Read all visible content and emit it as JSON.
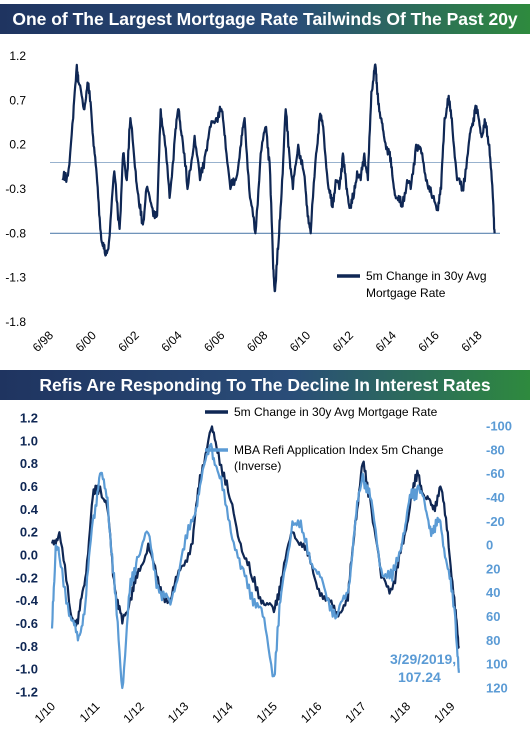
{
  "colors": {
    "navy": "#0f2754",
    "light_blue": "#5b9bd5",
    "reference_line": "#5b84b1"
  },
  "chart_data": [
    {
      "type": "line",
      "title": "One of The Largest Mortgage Rate Tailwinds Of The Past 20y",
      "x_tick_labels": [
        "6/98",
        "6/00",
        "6/02",
        "6/04",
        "6/06",
        "6/08",
        "6/10",
        "6/12",
        "6/14",
        "6/16",
        "6/18"
      ],
      "y_tick_labels": [
        "1.2",
        "0.7",
        "0.2",
        "-0.3",
        "-0.8",
        "-1.3",
        "-1.8"
      ],
      "ylim": [
        -1.8,
        1.2
      ],
      "xlim": [
        "1998-06",
        "2019-06"
      ],
      "grid": false,
      "legend_position": "bottom-right",
      "reference_lines": [
        {
          "axis": "y",
          "value": 0.0
        },
        {
          "axis": "y",
          "value": -0.8
        }
      ],
      "series": [
        {
          "name": "5m Change in 30y Avg Mortgage Rate",
          "x": [
            "1999-01",
            "1999-04",
            "1999-07",
            "1999-09",
            "1999-10",
            "2000-01",
            "2000-03",
            "2000-05",
            "2000-07",
            "2000-09",
            "2000-11",
            "2001-01",
            "2001-03",
            "2001-06",
            "2001-09",
            "2001-11",
            "2002-01",
            "2002-03",
            "2002-06",
            "2002-08",
            "2002-10",
            "2002-12",
            "2003-03",
            "2003-06",
            "2003-08",
            "2003-10",
            "2004-01",
            "2004-04",
            "2004-06",
            "2004-08",
            "2004-11",
            "2005-03",
            "2005-06",
            "2005-09",
            "2005-12",
            "2006-03",
            "2006-06",
            "2006-08",
            "2006-11",
            "2007-02",
            "2007-05",
            "2007-07",
            "2007-10",
            "2008-01",
            "2008-04",
            "2008-07",
            "2008-09",
            "2008-11",
            "2008-12",
            "2009-02",
            "2009-04",
            "2009-06",
            "2009-08",
            "2009-10",
            "2010-01",
            "2010-04",
            "2010-06",
            "2010-08",
            "2010-11",
            "2011-01",
            "2011-03",
            "2011-06",
            "2011-08",
            "2011-10",
            "2011-12",
            "2012-02",
            "2012-04",
            "2012-06",
            "2012-08",
            "2012-10",
            "2012-12",
            "2013-02",
            "2013-04",
            "2013-06",
            "2013-08",
            "2013-09",
            "2013-11",
            "2014-01",
            "2014-04",
            "2014-06",
            "2014-08",
            "2014-11",
            "2015-02",
            "2015-04",
            "2015-07",
            "2015-10",
            "2016-01",
            "2016-04",
            "2016-07",
            "2016-09",
            "2016-11",
            "2017-01",
            "2017-03",
            "2017-06",
            "2017-09",
            "2017-12",
            "2018-02",
            "2018-04",
            "2018-06",
            "2018-08",
            "2018-10",
            "2018-12",
            "2019-02",
            "2019-03"
          ],
          "y": [
            -0.2,
            -0.15,
            0.5,
            1.1,
            0.9,
            0.6,
            0.9,
            0.6,
            0.1,
            -0.4,
            -0.9,
            -1.05,
            -0.9,
            -0.1,
            -0.75,
            0.1,
            -0.2,
            0.5,
            -0.1,
            -0.5,
            -0.7,
            -0.3,
            -0.5,
            -0.6,
            0.6,
            0.3,
            -0.4,
            0.3,
            0.6,
            0.3,
            -0.3,
            0.3,
            -0.2,
            0.1,
            0.4,
            0.5,
            0.6,
            0.3,
            -0.3,
            -0.2,
            0.2,
            0.5,
            -0.4,
            -0.8,
            0.1,
            0.4,
            0.0,
            -1.2,
            -1.45,
            -0.9,
            -0.2,
            0.6,
            0.1,
            -0.3,
            0.2,
            -0.1,
            -0.5,
            -0.8,
            0.1,
            0.5,
            0.4,
            -0.3,
            -0.5,
            -0.2,
            -0.3,
            0.1,
            -0.3,
            -0.5,
            -0.4,
            -0.1,
            -0.2,
            0.1,
            -0.2,
            0.8,
            1.1,
            0.9,
            0.5,
            0.3,
            0.1,
            -0.2,
            -0.4,
            -0.5,
            -0.2,
            -0.3,
            0.2,
            0.1,
            -0.2,
            -0.4,
            -0.5,
            -0.3,
            0.5,
            0.7,
            0.5,
            -0.2,
            -0.3,
            0.1,
            0.4,
            0.6,
            0.5,
            0.3,
            0.45,
            0.2,
            -0.4,
            -0.8
          ]
        }
      ]
    },
    {
      "type": "line",
      "title": "Refis Are Responding To The Decline In Interest Rates",
      "x_tick_labels": [
        "1/10",
        "1/11",
        "1/12",
        "1/13",
        "1/14",
        "1/15",
        "1/16",
        "1/17",
        "1/18",
        "1/19"
      ],
      "y_tick_labels_left": [
        "1.2",
        "1.0",
        "0.8",
        "0.6",
        "0.4",
        "0.2",
        "0.0",
        "-0.2",
        "-0.4",
        "-0.6",
        "-0.8",
        "-1.0",
        "-1.2"
      ],
      "y_tick_labels_right": [
        "-100",
        "-80",
        "-60",
        "-40",
        "-20",
        "0",
        "20",
        "40",
        "60",
        "80",
        "100",
        "120"
      ],
      "ylim_left": [
        -1.2,
        1.2
      ],
      "ylim_right_inverted": [
        -100,
        120
      ],
      "xlim": [
        "2010-01",
        "2019-06"
      ],
      "grid": false,
      "legend_position": "top-right",
      "annotation": {
        "line1": "3/29/2019,",
        "line2": "107.24"
      },
      "series": [
        {
          "name": "5m Change in 30y Avg Mortgage Rate",
          "axis": "left",
          "x": [
            "2010-01",
            "2010-03",
            "2010-06",
            "2010-08",
            "2010-10",
            "2010-12",
            "2011-02",
            "2011-04",
            "2011-06",
            "2011-08",
            "2011-10",
            "2011-12",
            "2012-03",
            "2012-06",
            "2012-09",
            "2012-12",
            "2013-03",
            "2013-05",
            "2013-08",
            "2013-10",
            "2014-01",
            "2014-04",
            "2014-07",
            "2014-10",
            "2015-01",
            "2015-03",
            "2015-06",
            "2015-09",
            "2015-12",
            "2016-03",
            "2016-06",
            "2016-09",
            "2016-11",
            "2017-01",
            "2017-03",
            "2017-06",
            "2017-09",
            "2017-12",
            "2018-02",
            "2018-04",
            "2018-06",
            "2018-08",
            "2018-10",
            "2018-12",
            "2019-02",
            "2019-03"
          ],
          "y": [
            0.1,
            0.2,
            -0.5,
            -0.6,
            -0.2,
            0.5,
            0.6,
            0.4,
            -0.3,
            -0.6,
            -0.4,
            -0.2,
            0.1,
            -0.3,
            -0.4,
            -0.1,
            0.1,
            0.7,
            1.1,
            0.9,
            0.5,
            0.1,
            -0.2,
            -0.4,
            -0.5,
            -0.2,
            0.2,
            0.1,
            -0.2,
            -0.4,
            -0.5,
            -0.4,
            0.3,
            0.8,
            0.5,
            -0.2,
            -0.3,
            0.1,
            0.5,
            0.7,
            0.5,
            0.4,
            0.6,
            0.2,
            -0.5,
            -0.8
          ]
        },
        {
          "name": "MBA Refi Application Index 5m Change (Inverse)",
          "axis": "right",
          "x": [
            "2010-01",
            "2010-02",
            "2010-03",
            "2010-06",
            "2010-08",
            "2010-10",
            "2010-12",
            "2011-02",
            "2011-04",
            "2011-06",
            "2011-08",
            "2011-10",
            "2011-12",
            "2012-03",
            "2012-06",
            "2012-09",
            "2012-12",
            "2013-03",
            "2013-05",
            "2013-08",
            "2013-10",
            "2014-01",
            "2014-04",
            "2014-07",
            "2014-10",
            "2015-01",
            "2015-03",
            "2015-06",
            "2015-09",
            "2015-12",
            "2016-03",
            "2016-06",
            "2016-09",
            "2016-11",
            "2017-01",
            "2017-03",
            "2017-06",
            "2017-09",
            "2017-12",
            "2018-02",
            "2018-04",
            "2018-06",
            "2018-08",
            "2018-10",
            "2018-12",
            "2019-02",
            "2019-03"
          ],
          "y": [
            70,
            0,
            10,
            60,
            80,
            50,
            -20,
            -60,
            -40,
            40,
            120,
            40,
            10,
            -10,
            40,
            50,
            10,
            -20,
            -50,
            -85,
            -60,
            -20,
            20,
            40,
            60,
            110,
            40,
            -20,
            -10,
            20,
            40,
            60,
            40,
            -20,
            -60,
            -40,
            20,
            30,
            -10,
            -40,
            -50,
            -30,
            -10,
            -20,
            20,
            60,
            107.24
          ]
        }
      ]
    }
  ]
}
